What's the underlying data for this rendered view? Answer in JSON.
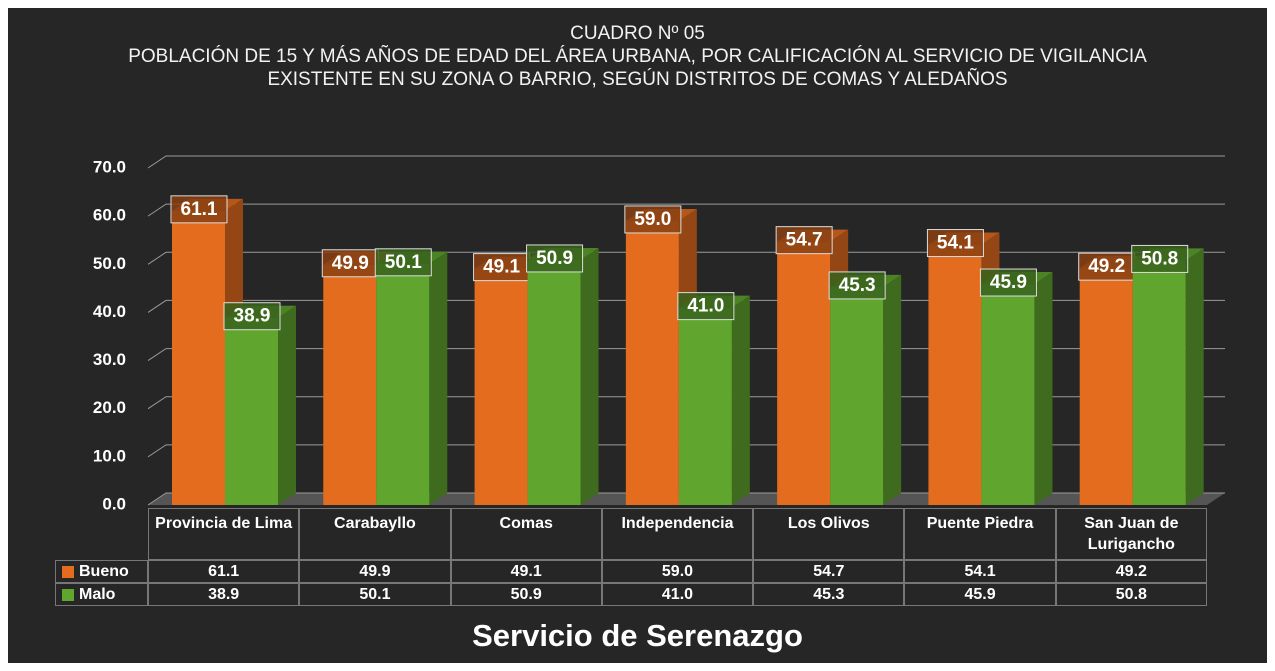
{
  "chart_data": {
    "type": "bar3d",
    "title": "CUADRO Nº 05",
    "subtitle": "POBLACIÓN DE 15 Y MÁS AÑOS DE EDAD DEL ÁREA URBANA, POR CALIFICACIÓN AL SERVICIO DE VIGILANCIA EXISTENTE EN SU ZONA O BARRIO, SEGÚN DISTRITOS DE  COMAS Y ALEDAÑOS",
    "x_label": "Servicio de Serenazgo",
    "categories": [
      "Provincia de Lima",
      "Carabayllo",
      "Comas",
      "Independencia",
      "Los Olivos",
      "Puente Piedra",
      "San Juan de Lurigancho"
    ],
    "series": [
      {
        "name": "Bueno",
        "color": "#e46c1f",
        "values": [
          61.1,
          49.9,
          49.1,
          59.0,
          54.7,
          54.1,
          49.2
        ],
        "value_labels": [
          "61.1",
          "49.9",
          "49.1",
          "59.0",
          "54.7",
          "54.1",
          "49.2"
        ]
      },
      {
        "name": "Malo",
        "color": "#5fa52e",
        "values": [
          38.9,
          50.1,
          50.9,
          41.0,
          45.3,
          45.9,
          50.8
        ],
        "value_labels": [
          "38.9",
          "50.1",
          "50.9",
          "41.0",
          "45.3",
          "45.9",
          "50.8"
        ]
      }
    ],
    "ylim": [
      0,
      70
    ],
    "yticks": [
      {
        "value": 0,
        "label": "0.0"
      },
      {
        "value": 10,
        "label": "10.0"
      },
      {
        "value": 20,
        "label": "20.0"
      },
      {
        "value": 30,
        "label": "30.0"
      },
      {
        "value": 40,
        "label": "40.0"
      },
      {
        "value": 50,
        "label": "50.0"
      },
      {
        "value": 60,
        "label": "60.0"
      },
      {
        "value": 70,
        "label": "70.0"
      }
    ],
    "grid": true
  }
}
